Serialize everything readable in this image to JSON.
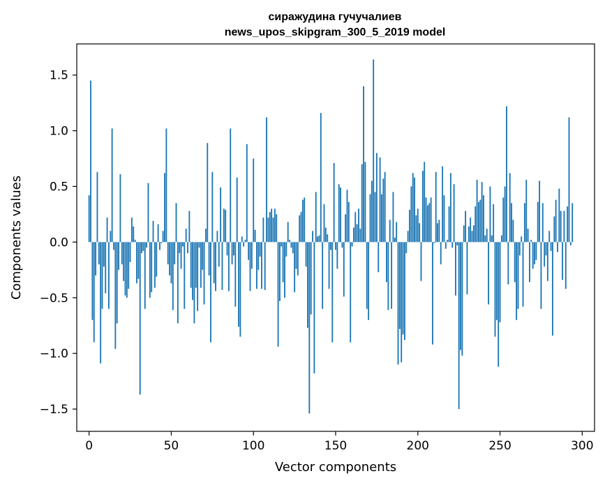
{
  "chart_data": {
    "type": "bar",
    "title": "сиражудина гучучалиев",
    "subtitle": "news_upos_skipgram_300_5_2019 model",
    "xlabel": "Vector components",
    "ylabel": "Components values",
    "xlim": [
      -7.5,
      307.5
    ],
    "ylim": [
      -1.7,
      1.78
    ],
    "x_ticks": [
      0,
      50,
      100,
      150,
      200,
      250,
      300
    ],
    "x_tick_labels": [
      "0",
      "50",
      "100",
      "150",
      "200",
      "250",
      "300"
    ],
    "y_ticks": [
      -1.5,
      -1.0,
      -0.5,
      0.0,
      0.5,
      1.0,
      1.5
    ],
    "y_tick_labels": [
      "−1.5",
      "−1.0",
      "−0.5",
      "0.0",
      "0.5",
      "1.0",
      "1.5"
    ],
    "bar_color": "#1f77b4",
    "values": [
      0.42,
      1.45,
      -0.7,
      -0.9,
      -0.3,
      0.63,
      -0.2,
      -1.09,
      -0.6,
      -0.22,
      -0.46,
      0.22,
      -0.6,
      0.1,
      1.02,
      -0.07,
      -0.96,
      -0.73,
      -0.25,
      0.61,
      -0.2,
      -0.35,
      -0.48,
      -0.5,
      -0.42,
      -0.18,
      0.22,
      0.14,
      0.02,
      -0.37,
      -0.33,
      -1.37,
      -0.1,
      -0.08,
      -0.6,
      -0.05,
      0.53,
      -0.5,
      -0.45,
      0.19,
      -0.41,
      -0.31,
      0.16,
      -0.07,
      -0.01,
      0.1,
      0.62,
      1.02,
      -0.2,
      -0.3,
      -0.37,
      -0.61,
      -0.2,
      0.35,
      -0.73,
      -0.1,
      -0.24,
      -0.04,
      -0.6,
      0.12,
      -0.1,
      0.28,
      -0.41,
      -0.52,
      -0.73,
      -0.41,
      -0.62,
      -0.05,
      -0.41,
      -0.25,
      -0.56,
      0.12,
      0.89,
      -0.3,
      -0.9,
      0.63,
      -0.37,
      -0.44,
      0.1,
      -0.22,
      0.49,
      -0.43,
      0.3,
      0.29,
      -0.12,
      -0.44,
      1.02,
      -0.2,
      -0.12,
      -0.58,
      0.58,
      -0.76,
      -0.85,
      0.05,
      -0.04,
      0.02,
      0.88,
      -0.16,
      -0.44,
      -0.24,
      0.75,
      0.11,
      -0.42,
      -0.25,
      -0.13,
      -0.42,
      0.22,
      -0.43,
      1.12,
      0.22,
      0.27,
      0.3,
      0.22,
      0.3,
      0.25,
      -0.94,
      -0.53,
      -0.04,
      -0.36,
      -0.5,
      -0.13,
      0.18,
      0.02,
      -0.05,
      -0.1,
      -0.45,
      -0.24,
      -0.3,
      0.24,
      0.27,
      0.38,
      0.4,
      -0.22,
      -0.77,
      -1.54,
      -0.65,
      0.1,
      -1.18,
      0.45,
      0.05,
      0.06,
      1.16,
      -0.6,
      0.34,
      0.13,
      0.07,
      -0.42,
      -0.07,
      -0.9,
      0.71,
      -0.07,
      -0.24,
      0.52,
      0.49,
      -0.05,
      -0.49,
      0.25,
      0.47,
      0.36,
      -0.9,
      -0.04,
      0.13,
      0.27,
      0.16,
      0.3,
      0.12,
      0.7,
      1.4,
      0.72,
      -0.6,
      -0.7,
      0.43,
      0.55,
      1.64,
      0.45,
      0.8,
      -0.27,
      0.76,
      0.43,
      0.57,
      0.63,
      -0.36,
      -0.61,
      0.2,
      -0.6,
      0.45,
      0.04,
      0.18,
      -1.1,
      -0.78,
      -1.08,
      -0.83,
      -0.88,
      -0.1,
      0.1,
      0.29,
      0.5,
      0.62,
      0.58,
      0.24,
      0.3,
      0.17,
      -0.35,
      0.64,
      0.72,
      0.4,
      0.33,
      0.35,
      0.4,
      -0.92,
      -0.01,
      0.63,
      0.17,
      0.2,
      -0.2,
      0.68,
      0.42,
      -0.06,
      0.02,
      0.32,
      0.62,
      -0.05,
      0.52,
      -0.48,
      -0.03,
      -1.5,
      -0.97,
      -1.02,
      0.15,
      0.28,
      -0.47,
      0.14,
      0.22,
      0.1,
      0.15,
      0.32,
      0.56,
      0.36,
      0.38,
      0.54,
      0.42,
      0.06,
      0.12,
      -0.56,
      0.5,
      0.06,
      0.34,
      -0.85,
      -0.7,
      -1.12,
      -0.72,
      0.06,
      0.4,
      0.5,
      1.22,
      -0.38,
      0.62,
      0.35,
      0.2,
      -0.36,
      -0.7,
      -0.6,
      -0.12,
      0.05,
      -0.58,
      0.35,
      0.56,
      0.12,
      -0.36,
      0.02,
      -0.24,
      -0.2,
      -0.16,
      0.36,
      0.55,
      -0.6,
      0.35,
      -0.22,
      -0.12,
      -0.35,
      0.1,
      -0.08,
      -0.84,
      0.23,
      0.38,
      -0.09,
      0.48,
      0.28,
      -0.34,
      0.28,
      -0.42,
      0.32,
      1.12,
      -0.03,
      0.35
    ]
  }
}
